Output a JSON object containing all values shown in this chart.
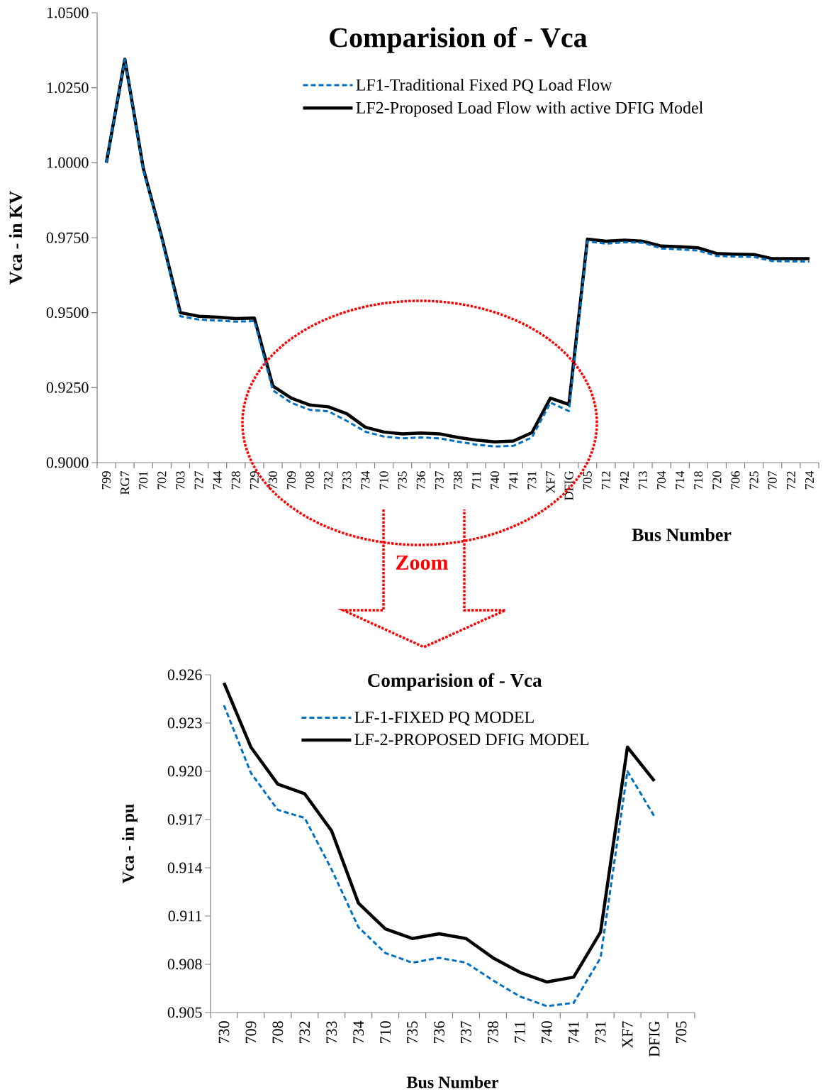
{
  "chart_data": [
    {
      "type": "line",
      "title": "Comparision of  -  Vca",
      "xlabel": "Bus Number",
      "ylabel": "Vca - in KV",
      "categories": [
        "799",
        "RG7",
        "701",
        "702",
        "703",
        "727",
        "744",
        "728",
        "729",
        "730",
        "709",
        "708",
        "732",
        "733",
        "734",
        "710",
        "735",
        "736",
        "737",
        "738",
        "711",
        "740",
        "741",
        "731",
        "XF7",
        "DFIG",
        "705",
        "712",
        "742",
        "713",
        "704",
        "714",
        "718",
        "720",
        "706",
        "725",
        "707",
        "722",
        "724"
      ],
      "series": [
        {
          "name": "LF1-Traditional Fixed PQ Load Flow",
          "color": "#0070c0",
          "line_style": "dashed",
          "values": [
            1.0,
            1.0345,
            0.9975,
            0.9745,
            0.9488,
            0.9477,
            0.9474,
            0.947,
            0.9472,
            0.9241,
            0.9199,
            0.9176,
            0.9171,
            0.9139,
            0.9103,
            0.9087,
            0.9081,
            0.9084,
            0.9081,
            0.907,
            0.906,
            0.9054,
            0.9056,
            0.9084,
            0.92,
            0.9172,
            0.9738,
            0.973,
            0.9735,
            0.9733,
            0.9714,
            0.9711,
            0.9707,
            0.9689,
            0.9687,
            0.9686,
            0.9672,
            0.9671,
            0.967
          ]
        },
        {
          "name": "LF2-Proposed Load Flow with active DFIG Model",
          "color": "#000000",
          "line_style": "solid",
          "values": [
            1.0,
            1.0345,
            0.998,
            0.975,
            0.95,
            0.9488,
            0.9485,
            0.948,
            0.9482,
            0.9255,
            0.9215,
            0.9192,
            0.9186,
            0.9163,
            0.9118,
            0.9102,
            0.9096,
            0.9099,
            0.9096,
            0.9084,
            0.9075,
            0.9069,
            0.9072,
            0.91,
            0.9215,
            0.9194,
            0.9745,
            0.9738,
            0.9742,
            0.9738,
            0.9722,
            0.972,
            0.9716,
            0.9697,
            0.9695,
            0.9694,
            0.968,
            0.968,
            0.968
          ]
        }
      ],
      "ylim": [
        0.9,
        1.05
      ],
      "yticks": [
        {
          "value": 0.9,
          "label": "0.9000"
        },
        {
          "value": 0.925,
          "label": "0.9250"
        },
        {
          "value": 0.95,
          "label": "0.9500"
        },
        {
          "value": 0.975,
          "label": "0.9750"
        },
        {
          "value": 1.0,
          "label": "1.0000"
        },
        {
          "value": 1.025,
          "label": "1.0250"
        },
        {
          "value": 1.05,
          "label": "1.0500"
        }
      ],
      "legend": "top",
      "marker": "none",
      "grid": false,
      "annotations": [
        "Zoom"
      ]
    },
    {
      "type": "line",
      "title": "Comparision of  -  Vca",
      "xlabel": "Bus  Number",
      "ylabel": "Vca - in pu",
      "categories": [
        "730",
        "709",
        "708",
        "732",
        "733",
        "734",
        "710",
        "735",
        "736",
        "737",
        "738",
        "711",
        "740",
        "741",
        "731",
        "XF7",
        "DFIG",
        "705"
      ],
      "series": [
        {
          "name": "LF-1-FIXED PQ MODEL",
          "color": "#0070c0",
          "line_style": "dashed",
          "values": [
            0.9241,
            0.9199,
            0.9176,
            0.9171,
            0.9139,
            0.9103,
            0.9087,
            0.9081,
            0.9084,
            0.9081,
            0.907,
            0.906,
            0.9054,
            0.9056,
            0.9084,
            0.92,
            0.9172,
            null
          ]
        },
        {
          "name": "LF-2-PROPOSED DFIG MODEL",
          "color": "#000000",
          "line_style": "solid",
          "values": [
            0.9255,
            0.9215,
            0.9192,
            0.9186,
            0.9163,
            0.9118,
            0.9102,
            0.9096,
            0.9099,
            0.9096,
            0.9084,
            0.9075,
            0.9069,
            0.9072,
            0.91,
            0.9215,
            0.9194,
            null
          ]
        }
      ],
      "ylim": [
        0.905,
        0.926
      ],
      "yticks": [
        {
          "value": 0.905,
          "label": "0.905"
        },
        {
          "value": 0.908,
          "label": "0.908"
        },
        {
          "value": 0.911,
          "label": "0.911"
        },
        {
          "value": 0.914,
          "label": "0.914"
        },
        {
          "value": 0.917,
          "label": "0.917"
        },
        {
          "value": 0.92,
          "label": "0.920"
        },
        {
          "value": 0.923,
          "label": "0.923"
        },
        {
          "value": 0.926,
          "label": "0.926"
        }
      ],
      "legend": "top",
      "marker": "none",
      "grid": false
    }
  ]
}
